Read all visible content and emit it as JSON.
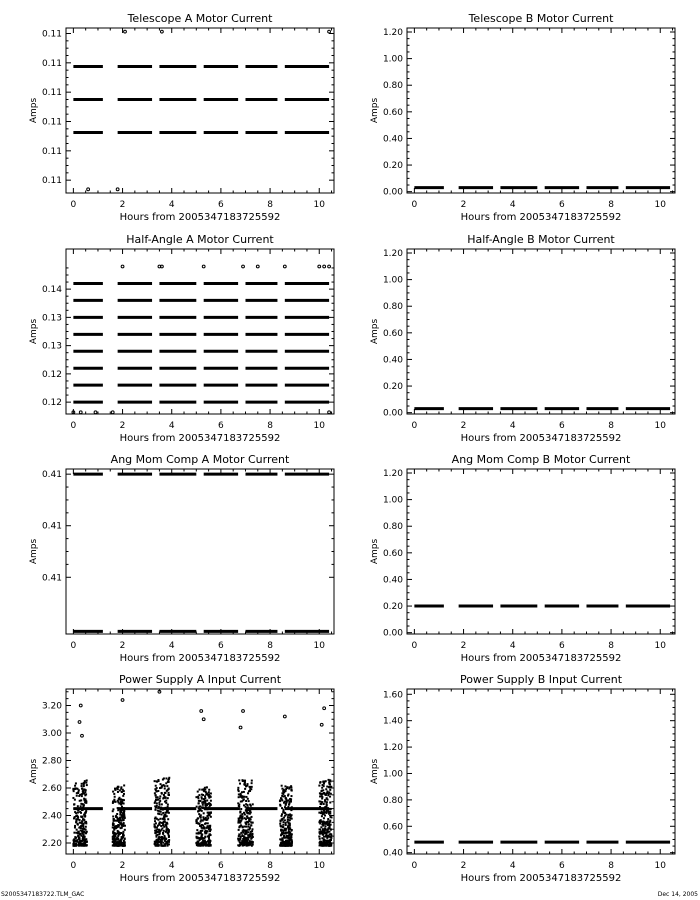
{
  "footer": {
    "left": "S2005347183722.TLM_GAC",
    "right": "Dec 14, 2005"
  },
  "chart_data": [
    {
      "type": "scatter",
      "title": "Telescope A Motor Current",
      "xlabel": "Hours from 2005347183725592",
      "ylabel": "Amps",
      "xlim": [
        -0.3,
        10.6
      ],
      "xticks": [
        0,
        2,
        4,
        6,
        8,
        10
      ],
      "xtick_labels": [
        "0",
        "2",
        "4",
        "6",
        "8",
        "10"
      ],
      "ylim": [
        0.1065,
        0.1155
      ],
      "yticks": [
        0.1072,
        0.1088,
        0.1104,
        0.112,
        0.1136,
        0.1152
      ],
      "ytick_labels": [
        "0.11",
        "0.11",
        "0.11",
        "0.11",
        "0.11",
        "0.11"
      ],
      "bands": [
        {
          "y": 0.1098,
          "segments": [
            [
              0,
              1.2
            ],
            [
              1.8,
              3.2
            ],
            [
              3.5,
              5.0
            ],
            [
              5.3,
              6.7
            ],
            [
              7.0,
              8.3
            ],
            [
              8.6,
              10.4
            ]
          ]
        },
        {
          "y": 0.1116,
          "segments": [
            [
              0,
              1.2
            ],
            [
              1.8,
              3.2
            ],
            [
              3.5,
              5.0
            ],
            [
              5.3,
              6.7
            ],
            [
              7.0,
              8.3
            ],
            [
              8.6,
              10.4
            ]
          ]
        },
        {
          "y": 0.1134,
          "segments": [
            [
              0,
              1.2
            ],
            [
              1.8,
              3.2
            ],
            [
              3.5,
              5.0
            ],
            [
              5.3,
              6.7
            ],
            [
              7.0,
              8.3
            ],
            [
              8.6,
              10.4
            ]
          ]
        }
      ],
      "points": [
        [
          2.1,
          0.1153
        ],
        [
          3.6,
          0.1153
        ],
        [
          10.4,
          0.1153
        ],
        [
          0.6,
          0.1067
        ],
        [
          1.8,
          0.1067
        ]
      ]
    },
    {
      "type": "scatter",
      "title": "Telescope B Motor Current",
      "xlabel": "Hours from 2005347183725592",
      "ylabel": "Amps",
      "xlim": [
        -0.3,
        10.6
      ],
      "xticks": [
        0,
        2,
        4,
        6,
        8,
        10
      ],
      "xtick_labels": [
        "0",
        "2",
        "4",
        "6",
        "8",
        "10"
      ],
      "ylim": [
        -0.01,
        1.23
      ],
      "yticks": [
        0,
        0.2,
        0.4,
        0.6,
        0.8,
        1.0,
        1.2
      ],
      "ytick_labels": [
        "0.00",
        "0.20",
        "0.40",
        "0.60",
        "0.80",
        "1.00",
        "1.20"
      ],
      "bands": [
        {
          "y": 0.03,
          "segments": [
            [
              0,
              1.2
            ],
            [
              1.8,
              3.2
            ],
            [
              3.5,
              5.0
            ],
            [
              5.3,
              6.7
            ],
            [
              7.0,
              8.3
            ],
            [
              8.6,
              10.4
            ]
          ]
        }
      ],
      "points": []
    },
    {
      "type": "scatter",
      "title": "Half-Angle A Motor Current",
      "xlabel": "Hours from 2005347183725592",
      "ylabel": "Amps",
      "xlim": [
        -0.3,
        10.6
      ],
      "xticks": [
        0,
        2,
        4,
        6,
        8,
        10
      ],
      "xtick_labels": [
        "0",
        "2",
        "4",
        "6",
        "8",
        "10"
      ],
      "ylim": [
        0.1154,
        0.1446
      ],
      "yticks": [
        0.1175,
        0.1225,
        0.1275,
        0.1325,
        0.1375
      ],
      "ytick_labels": [
        "0.12",
        "0.12",
        "0.13",
        "0.13",
        "0.14"
      ],
      "bands": [
        {
          "y": 0.1175,
          "segments": [
            [
              0,
              1.2
            ],
            [
              1.8,
              3.2
            ],
            [
              3.5,
              5.0
            ],
            [
              5.3,
              6.7
            ],
            [
              7.0,
              8.3
            ],
            [
              8.6,
              10.4
            ]
          ]
        },
        {
          "y": 0.1205,
          "segments": [
            [
              0,
              1.2
            ],
            [
              1.8,
              3.2
            ],
            [
              3.5,
              5.0
            ],
            [
              5.3,
              6.7
            ],
            [
              7.0,
              8.3
            ],
            [
              8.6,
              10.4
            ]
          ]
        },
        {
          "y": 0.1235,
          "segments": [
            [
              0,
              1.2
            ],
            [
              1.8,
              3.2
            ],
            [
              3.5,
              5.0
            ],
            [
              5.3,
              6.7
            ],
            [
              7.0,
              8.3
            ],
            [
              8.6,
              10.4
            ]
          ]
        },
        {
          "y": 0.1265,
          "segments": [
            [
              0,
              1.2
            ],
            [
              1.8,
              3.2
            ],
            [
              3.5,
              5.0
            ],
            [
              5.3,
              6.7
            ],
            [
              7.0,
              8.3
            ],
            [
              8.6,
              10.4
            ]
          ]
        },
        {
          "y": 0.1295,
          "segments": [
            [
              0,
              1.2
            ],
            [
              1.8,
              3.2
            ],
            [
              3.5,
              5.0
            ],
            [
              5.3,
              6.7
            ],
            [
              7.0,
              8.3
            ],
            [
              8.6,
              10.4
            ]
          ]
        },
        {
          "y": 0.1325,
          "segments": [
            [
              0,
              1.2
            ],
            [
              1.8,
              3.2
            ],
            [
              3.5,
              5.0
            ],
            [
              5.3,
              6.7
            ],
            [
              7.0,
              8.3
            ],
            [
              8.6,
              10.4
            ]
          ]
        },
        {
          "y": 0.1355,
          "segments": [
            [
              0,
              1.2
            ],
            [
              1.8,
              3.2
            ],
            [
              3.5,
              5.0
            ],
            [
              5.3,
              6.7
            ],
            [
              7.0,
              8.3
            ],
            [
              8.6,
              10.4
            ]
          ]
        },
        {
          "y": 0.1385,
          "segments": [
            [
              0,
              1.2
            ],
            [
              1.8,
              3.2
            ],
            [
              3.5,
              5.0
            ],
            [
              5.3,
              6.7
            ],
            [
              7.0,
              8.3
            ],
            [
              8.6,
              10.4
            ]
          ]
        }
      ],
      "points": [
        [
          2.0,
          0.1415
        ],
        [
          3.5,
          0.1415
        ],
        [
          3.6,
          0.1415
        ],
        [
          5.3,
          0.1415
        ],
        [
          6.9,
          0.1415
        ],
        [
          7.5,
          0.1415
        ],
        [
          8.6,
          0.1415
        ],
        [
          10.0,
          0.1415
        ],
        [
          10.4,
          0.1415
        ],
        [
          10.2,
          0.1415
        ],
        [
          0.0,
          0.1157
        ],
        [
          0.3,
          0.1157
        ],
        [
          0.9,
          0.1157
        ],
        [
          1.6,
          0.1157
        ],
        [
          10.4,
          0.1157
        ]
      ]
    },
    {
      "type": "scatter",
      "title": "Half-Angle B Motor Current",
      "xlabel": "Hours from 2005347183725592",
      "ylabel": "Amps",
      "xlim": [
        -0.3,
        10.6
      ],
      "xticks": [
        0,
        2,
        4,
        6,
        8,
        10
      ],
      "xtick_labels": [
        "0",
        "2",
        "4",
        "6",
        "8",
        "10"
      ],
      "ylim": [
        -0.01,
        1.23
      ],
      "yticks": [
        0,
        0.2,
        0.4,
        0.6,
        0.8,
        1.0,
        1.2
      ],
      "ytick_labels": [
        "0.00",
        "0.20",
        "0.40",
        "0.60",
        "0.80",
        "1.00",
        "1.20"
      ],
      "bands": [
        {
          "y": 0.03,
          "segments": [
            [
              0,
              1.2
            ],
            [
              1.8,
              3.2
            ],
            [
              3.5,
              5.0
            ],
            [
              5.3,
              6.7
            ],
            [
              7.0,
              8.3
            ],
            [
              8.6,
              10.4
            ]
          ]
        }
      ],
      "points": []
    },
    {
      "type": "scatter",
      "title": "Ang Mom Comp A Motor Current",
      "xlabel": "Hours from 2005347183725592",
      "ylabel": "Amps",
      "xlim": [
        -0.3,
        10.6
      ],
      "xticks": [
        0,
        2,
        4,
        6,
        8,
        10
      ],
      "xtick_labels": [
        "0",
        "2",
        "4",
        "6",
        "8",
        "10"
      ],
      "ylim": [
        0.4083,
        0.4147
      ],
      "yticks": [
        0.4105,
        0.4125,
        0.4145
      ],
      "ytick_labels": [
        "0.41",
        "0.41",
        "0.41"
      ],
      "bands": [
        {
          "y": 0.4145,
          "segments": [
            [
              0,
              1.2
            ],
            [
              1.8,
              3.2
            ],
            [
              3.5,
              5.0
            ],
            [
              5.3,
              6.7
            ],
            [
              7.0,
              8.3
            ],
            [
              8.6,
              10.4
            ]
          ]
        },
        {
          "y": 0.4084,
          "segments": [
            [
              0,
              1.2
            ],
            [
              1.8,
              3.2
            ],
            [
              3.5,
              5.0
            ],
            [
              5.3,
              6.7
            ],
            [
              7.0,
              8.3
            ],
            [
              8.6,
              10.4
            ]
          ]
        }
      ],
      "points": []
    },
    {
      "type": "scatter",
      "title": "Ang Mom Comp B Motor Current",
      "xlabel": "Hours from 2005347183725592",
      "ylabel": "Amps",
      "xlim": [
        -0.3,
        10.6
      ],
      "xticks": [
        0,
        2,
        4,
        6,
        8,
        10
      ],
      "xtick_labels": [
        "0",
        "2",
        "4",
        "6",
        "8",
        "10"
      ],
      "ylim": [
        -0.01,
        1.23
      ],
      "yticks": [
        0,
        0.2,
        0.4,
        0.6,
        0.8,
        1.0,
        1.2
      ],
      "ytick_labels": [
        "0.00",
        "0.20",
        "0.40",
        "0.60",
        "0.80",
        "1.00",
        "1.20"
      ],
      "bands": [
        {
          "y": 0.2,
          "segments": [
            [
              0,
              1.2
            ],
            [
              1.8,
              3.2
            ],
            [
              3.5,
              5.0
            ],
            [
              5.3,
              6.7
            ],
            [
              7.0,
              8.3
            ],
            [
              8.6,
              10.4
            ]
          ]
        }
      ],
      "points": []
    },
    {
      "type": "scatter",
      "title": "Power Supply A Input Current",
      "xlabel": "Hours from 2005347183725592",
      "ylabel": "Amps",
      "xlim": [
        -0.3,
        10.6
      ],
      "xticks": [
        0,
        2,
        4,
        6,
        8,
        10
      ],
      "xtick_labels": [
        "0",
        "2",
        "4",
        "6",
        "8",
        "10"
      ],
      "ylim": [
        2.12,
        3.32
      ],
      "yticks": [
        2.2,
        2.4,
        2.6,
        2.8,
        3.0,
        3.2
      ],
      "ytick_labels": [
        "2.20",
        "2.40",
        "2.60",
        "2.80",
        "3.00",
        "3.20"
      ],
      "bands": [
        {
          "y": 2.45,
          "segments": [
            [
              0,
              1.2
            ],
            [
              1.8,
              3.2
            ],
            [
              3.5,
              5.0
            ],
            [
              5.3,
              6.7
            ],
            [
              7.0,
              8.3
            ],
            [
              8.6,
              10.4
            ]
          ]
        }
      ],
      "points": [
        [
          0.3,
          3.2
        ],
        [
          0.25,
          3.08
        ],
        [
          0.35,
          2.98
        ],
        [
          2.0,
          3.24
        ],
        [
          3.5,
          3.3
        ],
        [
          5.2,
          3.16
        ],
        [
          5.3,
          3.1
        ],
        [
          6.9,
          3.16
        ],
        [
          6.8,
          3.04
        ],
        [
          8.6,
          3.12
        ],
        [
          10.2,
          3.18
        ],
        [
          10.1,
          3.06
        ]
      ],
      "clusters": [
        {
          "x": [
            0.0,
            0.55
          ],
          "y": [
            2.18,
            2.66
          ]
        },
        {
          "x": [
            1.6,
            2.1
          ],
          "y": [
            2.18,
            2.62
          ]
        },
        {
          "x": [
            3.3,
            3.9
          ],
          "y": [
            2.18,
            2.68
          ]
        },
        {
          "x": [
            5.0,
            5.6
          ],
          "y": [
            2.18,
            2.62
          ]
        },
        {
          "x": [
            6.7,
            7.3
          ],
          "y": [
            2.18,
            2.66
          ]
        },
        {
          "x": [
            8.4,
            8.9
          ],
          "y": [
            2.18,
            2.62
          ]
        },
        {
          "x": [
            10.0,
            10.5
          ],
          "y": [
            2.18,
            2.66
          ]
        }
      ]
    },
    {
      "type": "scatter",
      "title": "Power Supply B Input Current",
      "xlabel": "Hours from 2005347183725592",
      "ylabel": "Amps",
      "xlim": [
        -0.3,
        10.6
      ],
      "xticks": [
        0,
        2,
        4,
        6,
        8,
        10
      ],
      "xtick_labels": [
        "0",
        "2",
        "4",
        "6",
        "8",
        "10"
      ],
      "ylim": [
        0.39,
        1.64
      ],
      "yticks": [
        0.4,
        0.6,
        0.8,
        1.0,
        1.2,
        1.4,
        1.6
      ],
      "ytick_labels": [
        "0.40",
        "0.60",
        "0.80",
        "1.00",
        "1.20",
        "1.40",
        "1.60"
      ],
      "bands": [
        {
          "y": 0.48,
          "segments": [
            [
              0,
              1.2
            ],
            [
              1.8,
              3.2
            ],
            [
              3.5,
              5.0
            ],
            [
              5.3,
              6.7
            ],
            [
              7.0,
              8.3
            ],
            [
              8.6,
              10.4
            ]
          ]
        }
      ],
      "points": []
    }
  ]
}
